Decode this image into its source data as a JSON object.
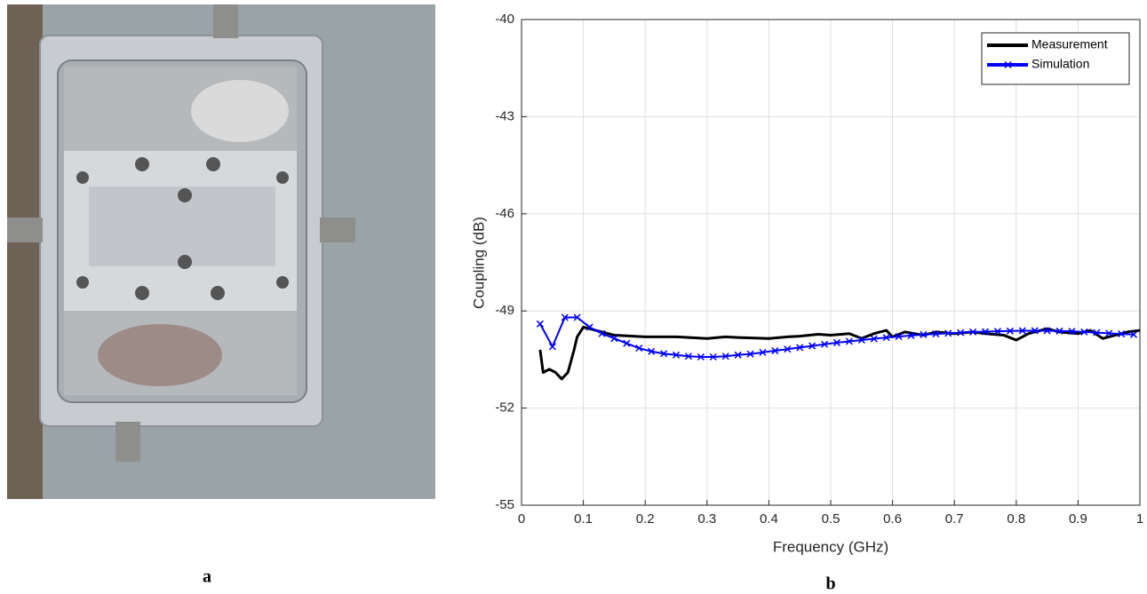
{
  "panel_labels": [
    "a",
    "b"
  ],
  "chart_data": {
    "type": "line",
    "xlabel": "Frequency (GHz)",
    "ylabel": "Coupling (dB)",
    "xlim": [
      0,
      1
    ],
    "ylim": [
      -55,
      -40
    ],
    "xticks": [
      0,
      0.1,
      0.2,
      0.3,
      0.4,
      0.5,
      0.6,
      0.7,
      0.8,
      0.9,
      1
    ],
    "yticks": [
      -55,
      -52,
      -49,
      -46,
      -43,
      -40
    ],
    "grid": true,
    "legend": "upper right",
    "series": [
      {
        "name": "Measurement",
        "color": "#000000",
        "marker": "none",
        "x": [
          0.03,
          0.035,
          0.045,
          0.055,
          0.065,
          0.075,
          0.085,
          0.09,
          0.1,
          0.12,
          0.15,
          0.2,
          0.25,
          0.3,
          0.33,
          0.35,
          0.4,
          0.43,
          0.45,
          0.48,
          0.5,
          0.53,
          0.55,
          0.57,
          0.59,
          0.6,
          0.62,
          0.65,
          0.67,
          0.7,
          0.73,
          0.75,
          0.78,
          0.8,
          0.82,
          0.85,
          0.87,
          0.9,
          0.92,
          0.94,
          0.96,
          0.98,
          1.0
        ],
        "values": [
          -50.2,
          -50.9,
          -50.8,
          -50.9,
          -51.1,
          -50.9,
          -50.2,
          -49.8,
          -49.5,
          -49.6,
          -49.75,
          -49.8,
          -49.8,
          -49.85,
          -49.8,
          -49.82,
          -49.85,
          -49.8,
          -49.78,
          -49.72,
          -49.75,
          -49.7,
          -49.85,
          -49.7,
          -49.6,
          -49.8,
          -49.65,
          -49.75,
          -49.65,
          -49.7,
          -49.65,
          -49.7,
          -49.75,
          -49.9,
          -49.7,
          -49.55,
          -49.65,
          -49.7,
          -49.6,
          -49.85,
          -49.75,
          -49.65,
          -49.6
        ]
      },
      {
        "name": "Simulation",
        "color": "#0000ff",
        "marker": "x",
        "x": [
          0.03,
          0.05,
          0.07,
          0.09,
          0.11,
          0.13,
          0.15,
          0.17,
          0.19,
          0.21,
          0.23,
          0.25,
          0.27,
          0.29,
          0.31,
          0.33,
          0.35,
          0.37,
          0.39,
          0.41,
          0.43,
          0.45,
          0.47,
          0.49,
          0.51,
          0.53,
          0.55,
          0.57,
          0.59,
          0.61,
          0.63,
          0.65,
          0.67,
          0.69,
          0.71,
          0.73,
          0.75,
          0.77,
          0.79,
          0.81,
          0.83,
          0.85,
          0.87,
          0.89,
          0.91,
          0.93,
          0.95,
          0.97,
          0.99
        ],
        "values": [
          -49.4,
          -50.1,
          -49.2,
          -49.2,
          -49.5,
          -49.7,
          -49.85,
          -50.0,
          -50.15,
          -50.25,
          -50.32,
          -50.36,
          -50.4,
          -50.42,
          -50.42,
          -50.4,
          -50.36,
          -50.33,
          -50.28,
          -50.23,
          -50.18,
          -50.13,
          -50.08,
          -50.03,
          -49.98,
          -49.94,
          -49.9,
          -49.86,
          -49.82,
          -49.79,
          -49.76,
          -49.73,
          -49.71,
          -49.69,
          -49.67,
          -49.65,
          -49.64,
          -49.63,
          -49.62,
          -49.61,
          -49.61,
          -49.61,
          -49.62,
          -49.63,
          -49.65,
          -49.67,
          -49.69,
          -49.71,
          -49.73
        ]
      }
    ]
  }
}
